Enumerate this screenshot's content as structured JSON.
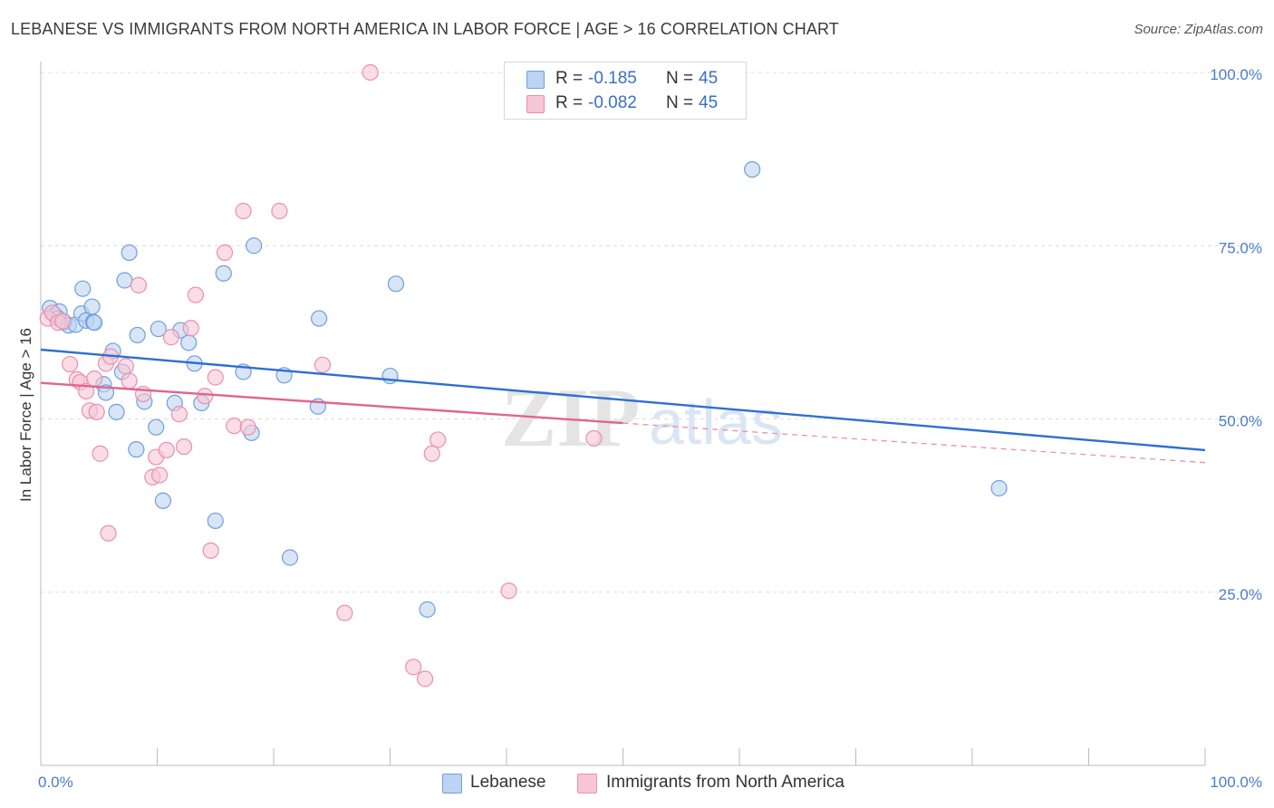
{
  "chart_data": {
    "type": "scatter",
    "title": "LEBANESE VS IMMIGRANTS FROM NORTH AMERICA IN LABOR FORCE | AGE > 16 CORRELATION CHART",
    "source": "Source: ZipAtlas.com",
    "ylabel": "In Labor Force | Age > 16",
    "xlim": [
      0,
      100
    ],
    "ylim": [
      0,
      102
    ],
    "y_ticks": [
      {
        "value": 25,
        "label": "25.0%"
      },
      {
        "value": 50,
        "label": "50.0%"
      },
      {
        "value": 75,
        "label": "75.0%"
      },
      {
        "value": 100,
        "label": "100.0%"
      }
    ],
    "x_tick_labels": {
      "left": "0.0%",
      "right": "100.0%"
    },
    "watermark": {
      "zip": "ZIP",
      "atlas": "atlas"
    },
    "legend": [
      {
        "r_label": "R =",
        "r_value": "-0.185",
        "n_label": "N =",
        "n_value": "45"
      },
      {
        "r_label": "R =",
        "r_value": "-0.082",
        "n_label": "N =",
        "n_value": "45"
      }
    ],
    "series": [
      {
        "name": "Lebanese",
        "color": "#6f9fdc",
        "fill": "#bcd3f2",
        "trend": {
          "x0": 0,
          "y0": 60.0,
          "x1": 100,
          "y1": 45.5
        },
        "points": [
          [
            0.8,
            66
          ],
          [
            1.2,
            65
          ],
          [
            1.6,
            65.5
          ],
          [
            2.0,
            64
          ],
          [
            1.5,
            64.5
          ],
          [
            2.4,
            63.5
          ],
          [
            3.0,
            63.6
          ],
          [
            3.5,
            65.2
          ],
          [
            3.6,
            68.8
          ],
          [
            3.9,
            64.2
          ],
          [
            4.5,
            64.0
          ],
          [
            4.4,
            66.2
          ],
          [
            4.6,
            63.9
          ],
          [
            6.2,
            59.8
          ],
          [
            5.4,
            55
          ],
          [
            5.6,
            53.8
          ],
          [
            6.5,
            51
          ],
          [
            7.0,
            56.8
          ],
          [
            7.2,
            70
          ],
          [
            7.6,
            74
          ],
          [
            8.3,
            62.1
          ],
          [
            8.9,
            52.5
          ],
          [
            8.2,
            45.6
          ],
          [
            9.9,
            48.8
          ],
          [
            10.1,
            63
          ],
          [
            10.5,
            38.2
          ],
          [
            11.5,
            52.3
          ],
          [
            12.0,
            62.8
          ],
          [
            12.7,
            61.0
          ],
          [
            13.2,
            58.0
          ],
          [
            13.8,
            52.3
          ],
          [
            15.0,
            35.3
          ],
          [
            15.7,
            71.0
          ],
          [
            17.4,
            56.8
          ],
          [
            18.1,
            48.0
          ],
          [
            18.3,
            75.0
          ],
          [
            20.9,
            56.3
          ],
          [
            21.4,
            30.0
          ],
          [
            23.8,
            51.8
          ],
          [
            23.9,
            64.5
          ],
          [
            30.0,
            56.2
          ],
          [
            30.5,
            69.5
          ],
          [
            33.2,
            22.5
          ],
          [
            61.1,
            86.0
          ],
          [
            82.3,
            40.0
          ]
        ]
      },
      {
        "name": "Immigrants from North America",
        "color": "#e98fae",
        "fill": "#f6c6d6",
        "trend": {
          "x0": 0,
          "y0": 55.2,
          "x1": 50,
          "y1": 49.4
        },
        "trend_dashed": {
          "x0": 50,
          "y0": 49.4,
          "x1": 100,
          "y1": 43.7
        },
        "points": [
          [
            0.6,
            64.5
          ],
          [
            1.0,
            65.3
          ],
          [
            1.5,
            63.9
          ],
          [
            1.9,
            64.1
          ],
          [
            2.5,
            57.9
          ],
          [
            3.1,
            55.7
          ],
          [
            3.4,
            55.3
          ],
          [
            3.9,
            54.0
          ],
          [
            4.6,
            55.8
          ],
          [
            4.2,
            51.2
          ],
          [
            4.8,
            51.0
          ],
          [
            5.1,
            45.0
          ],
          [
            5.6,
            58.0
          ],
          [
            6.0,
            59.0
          ],
          [
            5.8,
            33.5
          ],
          [
            7.3,
            57.6
          ],
          [
            7.6,
            55.5
          ],
          [
            8.4,
            69.3
          ],
          [
            8.8,
            53.6
          ],
          [
            9.6,
            41.6
          ],
          [
            9.9,
            44.5
          ],
          [
            10.2,
            41.9
          ],
          [
            10.8,
            45.5
          ],
          [
            11.2,
            61.8
          ],
          [
            11.9,
            50.7
          ],
          [
            12.3,
            46.0
          ],
          [
            12.9,
            63.1
          ],
          [
            13.3,
            67.9
          ],
          [
            14.1,
            53.3
          ],
          [
            14.6,
            31.0
          ],
          [
            15.0,
            56.0
          ],
          [
            15.8,
            74.0
          ],
          [
            16.6,
            49.0
          ],
          [
            17.4,
            80.0
          ],
          [
            17.8,
            48.8
          ],
          [
            20.5,
            80.0
          ],
          [
            24.2,
            57.8
          ],
          [
            26.1,
            22.0
          ],
          [
            28.3,
            100.0
          ],
          [
            32.0,
            14.2
          ],
          [
            33.0,
            12.5
          ],
          [
            33.6,
            45.0
          ],
          [
            34.1,
            47.0
          ],
          [
            40.2,
            25.2
          ],
          [
            47.5,
            47.2
          ]
        ]
      }
    ]
  }
}
